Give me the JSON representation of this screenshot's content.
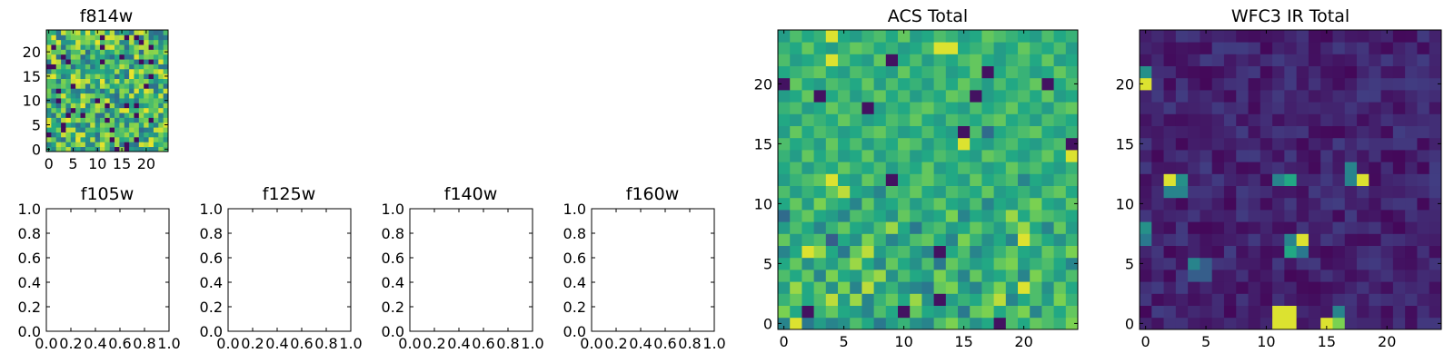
{
  "chart_data": [
    {
      "type": "heatmap",
      "id": "p814",
      "title": "f814w",
      "xlim": [
        -0.5,
        24.5
      ],
      "ylim": [
        -0.5,
        24.5
      ],
      "xticks": [
        0,
        5,
        10,
        15,
        20
      ],
      "yticks": [
        0,
        5,
        10,
        15,
        20
      ],
      "colormap": "viridis",
      "rows": 25,
      "cols": 25,
      "values": []
    },
    {
      "type": "heatmap",
      "id": "p105",
      "title": "f105w",
      "xlim": [
        0.0,
        1.0
      ],
      "ylim": [
        0.0,
        1.0
      ],
      "xticks": [
        "0.0",
        "0.2",
        "0.4",
        "0.6",
        "0.8",
        "1.0"
      ],
      "yticks": [
        "0.0",
        "0.2",
        "0.4",
        "0.6",
        "0.8",
        "1.0"
      ],
      "values": []
    },
    {
      "type": "heatmap",
      "id": "p125",
      "title": "f125w",
      "xlim": [
        0.0,
        1.0
      ],
      "ylim": [
        0.0,
        1.0
      ],
      "xticks": [
        "0.0",
        "0.2",
        "0.4",
        "0.6",
        "0.8",
        "1.0"
      ],
      "yticks": [
        "0.0",
        "0.2",
        "0.4",
        "0.6",
        "0.8",
        "1.0"
      ],
      "values": []
    },
    {
      "type": "heatmap",
      "id": "p140",
      "title": "f140w",
      "xlim": [
        0.0,
        1.0
      ],
      "ylim": [
        0.0,
        1.0
      ],
      "xticks": [
        "0.0",
        "0.2",
        "0.4",
        "0.6",
        "0.8",
        "1.0"
      ],
      "yticks": [
        "0.0",
        "0.2",
        "0.4",
        "0.6",
        "0.8",
        "1.0"
      ],
      "values": []
    },
    {
      "type": "heatmap",
      "id": "p160",
      "title": "f160w",
      "xlim": [
        0.0,
        1.0
      ],
      "ylim": [
        0.0,
        1.0
      ],
      "xticks": [
        "0.0",
        "0.2",
        "0.4",
        "0.6",
        "0.8",
        "1.0"
      ],
      "yticks": [
        "0.0",
        "0.2",
        "0.4",
        "0.6",
        "0.8",
        "1.0"
      ],
      "values": []
    },
    {
      "type": "heatmap",
      "id": "pacs",
      "title": "ACS Total",
      "xlim": [
        -0.5,
        24.5
      ],
      "ylim": [
        -0.5,
        24.5
      ],
      "xticks": [
        0,
        5,
        10,
        15,
        20
      ],
      "yticks": [
        0,
        5,
        10,
        15,
        20
      ],
      "colormap": "viridis",
      "rows": 25,
      "cols": 25,
      "values": [
        [
          0.45,
          0.95,
          0.4,
          0.55,
          0.45,
          0.5,
          0.7,
          0.6,
          0.4,
          0.55,
          0.65,
          0.5,
          0.45,
          0.7,
          0.8,
          0.65,
          0.5,
          0.6,
          0.05,
          0.7,
          0.6,
          0.75,
          0.7,
          0.65,
          0.8
        ],
        [
          0.8,
          0.6,
          0.05,
          0.65,
          0.75,
          0.6,
          0.55,
          0.45,
          0.7,
          0.6,
          0.05,
          0.75,
          0.6,
          0.55,
          0.65,
          0.4,
          0.75,
          0.8,
          0.6,
          0.7,
          0.8,
          0.45,
          0.7,
          0.6,
          0.75
        ],
        [
          0.65,
          0.75,
          0.6,
          0.7,
          0.9,
          0.55,
          0.85,
          0.45,
          0.65,
          0.75,
          0.6,
          0.85,
          0.5,
          0.05,
          0.55,
          0.65,
          0.6,
          0.75,
          0.9,
          0.45,
          0.6,
          0.7,
          0.55,
          0.8,
          0.65
        ],
        [
          0.55,
          0.85,
          0.6,
          0.75,
          0.5,
          0.8,
          0.45,
          0.9,
          0.55,
          0.65,
          0.5,
          0.45,
          0.4,
          0.75,
          0.8,
          0.55,
          0.45,
          0.65,
          0.8,
          0.55,
          0.95,
          0.7,
          0.5,
          0.75,
          0.6
        ],
        [
          0.7,
          0.6,
          0.75,
          0.45,
          0.8,
          0.6,
          0.55,
          0.75,
          0.85,
          0.5,
          0.7,
          0.6,
          0.55,
          0.8,
          0.65,
          0.45,
          0.75,
          0.55,
          0.6,
          0.7,
          0.45,
          0.8,
          0.65,
          0.55,
          0.7
        ],
        [
          0.6,
          0.75,
          0.5,
          0.65,
          0.55,
          0.7,
          0.85,
          0.6,
          0.45,
          0.75,
          0.6,
          0.5,
          0.7,
          0.4,
          0.75,
          0.65,
          0.55,
          0.6,
          0.75,
          0.8,
          0.55,
          0.65,
          0.7,
          0.6,
          0.45
        ],
        [
          0.45,
          0.6,
          0.95,
          0.85,
          0.6,
          0.4,
          0.75,
          0.9,
          0.55,
          0.65,
          0.7,
          0.55,
          0.45,
          0.05,
          0.6,
          0.7,
          0.45,
          0.55,
          0.65,
          0.75,
          0.6,
          0.55,
          0.75,
          0.65,
          0.8
        ],
        [
          0.75,
          0.55,
          0.65,
          0.7,
          0.3,
          0.6,
          0.5,
          0.8,
          0.65,
          0.45,
          0.55,
          0.7,
          0.75,
          0.6,
          0.45,
          0.8,
          0.65,
          0.5,
          0.6,
          0.45,
          0.95,
          0.7,
          0.6,
          0.5,
          0.65
        ],
        [
          0.55,
          0.7,
          0.6,
          0.45,
          0.65,
          0.75,
          0.6,
          0.55,
          0.7,
          0.85,
          0.6,
          0.4,
          0.65,
          0.7,
          0.55,
          0.6,
          0.75,
          0.65,
          0.55,
          0.7,
          0.85,
          0.6,
          0.45,
          0.75,
          0.55
        ],
        [
          0.35,
          0.65,
          0.75,
          0.6,
          0.55,
          0.45,
          0.7,
          0.65,
          0.6,
          0.5,
          0.75,
          0.65,
          0.55,
          0.6,
          0.8,
          0.45,
          0.6,
          0.55,
          0.65,
          0.85,
          0.6,
          0.75,
          0.7,
          0.65,
          0.6
        ],
        [
          0.6,
          0.75,
          0.55,
          0.8,
          0.65,
          0.6,
          0.45,
          0.75,
          0.55,
          0.6,
          0.7,
          0.55,
          0.65,
          0.75,
          0.6,
          0.55,
          0.7,
          0.45,
          0.6,
          0.55,
          0.7,
          0.8,
          0.6,
          0.55,
          0.75
        ],
        [
          0.7,
          0.55,
          0.65,
          0.6,
          0.75,
          0.9,
          0.6,
          0.55,
          0.45,
          0.7,
          0.65,
          0.75,
          0.6,
          0.55,
          0.7,
          0.65,
          0.6,
          0.75,
          0.55,
          0.6,
          0.65,
          0.55,
          0.7,
          0.75,
          0.6
        ],
        [
          0.55,
          0.65,
          0.7,
          0.75,
          0.95,
          0.6,
          0.55,
          0.75,
          0.65,
          0.05,
          0.6,
          0.7,
          0.75,
          0.65,
          0.6,
          0.55,
          0.75,
          0.6,
          0.65,
          0.7,
          0.45,
          0.6,
          0.55,
          0.65,
          0.7
        ],
        [
          0.6,
          0.7,
          0.55,
          0.65,
          0.6,
          0.75,
          0.65,
          0.6,
          0.7,
          0.55,
          0.65,
          0.6,
          0.75,
          0.55,
          0.6,
          0.7,
          0.65,
          0.55,
          0.6,
          0.75,
          0.65,
          0.7,
          0.6,
          0.55,
          0.65
        ],
        [
          0.65,
          0.55,
          0.75,
          0.6,
          0.7,
          0.55,
          0.6,
          0.75,
          0.55,
          0.65,
          0.7,
          0.55,
          0.6,
          0.7,
          0.65,
          0.6,
          0.55,
          0.75,
          0.7,
          0.6,
          0.55,
          0.65,
          0.75,
          0.6,
          0.95
        ],
        [
          0.7,
          0.6,
          0.65,
          0.55,
          0.75,
          0.6,
          0.7,
          0.55,
          0.65,
          0.6,
          0.75,
          0.7,
          0.55,
          0.65,
          0.6,
          0.95,
          0.6,
          0.55,
          0.65,
          0.7,
          0.6,
          0.55,
          0.65,
          0.7,
          0.05
        ],
        [
          0.55,
          0.75,
          0.6,
          0.7,
          0.65,
          0.55,
          0.6,
          0.7,
          0.75,
          0.65,
          0.55,
          0.6,
          0.7,
          0.6,
          0.55,
          0.05,
          0.7,
          0.35,
          0.6,
          0.65,
          0.7,
          0.75,
          0.6,
          0.55,
          0.65
        ],
        [
          0.6,
          0.55,
          0.7,
          0.65,
          0.6,
          0.75,
          0.65,
          0.55,
          0.6,
          0.7,
          0.65,
          0.75,
          0.6,
          0.55,
          0.7,
          0.65,
          0.6,
          0.7,
          0.75,
          0.6,
          0.65,
          0.55,
          0.7,
          0.65,
          0.6
        ],
        [
          0.65,
          0.7,
          0.55,
          0.6,
          0.75,
          0.65,
          0.7,
          0.05,
          0.55,
          0.65,
          0.6,
          0.7,
          0.75,
          0.65,
          0.6,
          0.55,
          0.7,
          0.6,
          0.65,
          0.75,
          0.6,
          0.65,
          0.55,
          0.7,
          0.75
        ],
        [
          0.55,
          0.6,
          0.75,
          0.05,
          0.6,
          0.7,
          0.55,
          0.65,
          0.75,
          0.6,
          0.7,
          0.55,
          0.65,
          0.6,
          0.75,
          0.7,
          0.05,
          0.55,
          0.6,
          0.65,
          0.7,
          0.6,
          0.75,
          0.55,
          0.6
        ],
        [
          0.05,
          0.75,
          0.6,
          0.55,
          0.7,
          0.65,
          0.6,
          0.75,
          0.55,
          0.7,
          0.6,
          0.65,
          0.55,
          0.7,
          0.6,
          0.75,
          0.65,
          0.55,
          0.7,
          0.6,
          0.65,
          0.75,
          0.05,
          0.6,
          0.7
        ],
        [
          0.6,
          0.65,
          0.7,
          0.75,
          0.6,
          0.55,
          0.7,
          0.65,
          0.6,
          0.55,
          0.75,
          0.6,
          0.65,
          0.7,
          0.55,
          0.6,
          0.75,
          0.05,
          0.6,
          0.7,
          0.65,
          0.55,
          0.6,
          0.75,
          0.65
        ],
        [
          0.7,
          0.55,
          0.6,
          0.65,
          0.95,
          0.7,
          0.6,
          0.55,
          0.75,
          0.05,
          0.6,
          0.7,
          0.55,
          0.65,
          0.6,
          0.7,
          0.75,
          0.6,
          0.55,
          0.65,
          0.7,
          0.6,
          0.75,
          0.55,
          0.6
        ],
        [
          0.65,
          0.6,
          0.75,
          0.6,
          0.55,
          0.65,
          0.75,
          0.7,
          0.6,
          0.65,
          0.55,
          0.6,
          0.7,
          0.95,
          0.95,
          0.6,
          0.65,
          0.7,
          0.55,
          0.6,
          0.75,
          0.65,
          0.6,
          0.7,
          0.55
        ],
        [
          0.55,
          0.7,
          0.6,
          0.65,
          0.95,
          0.6,
          0.55,
          0.65,
          0.7,
          0.6,
          0.75,
          0.55,
          0.6,
          0.7,
          0.65,
          0.55,
          0.6,
          0.75,
          0.7,
          0.65,
          0.6,
          0.55,
          0.7,
          0.6,
          0.65
        ]
      ]
    },
    {
      "type": "heatmap",
      "id": "pir",
      "title": "WFC3 IR Total",
      "xlim": [
        -0.5,
        24.5
      ],
      "ylim": [
        -0.5,
        24.5
      ],
      "xticks": [
        0,
        5,
        10,
        15,
        20
      ],
      "yticks": [
        0,
        5,
        10,
        15,
        20
      ],
      "colormap": "viridis",
      "rows": 25,
      "cols": 25,
      "hotspots": [
        {
          "x": 11,
          "y": 1,
          "v": 0.95
        },
        {
          "x": 12,
          "y": 1,
          "v": 0.95
        },
        {
          "x": 11,
          "y": 0,
          "v": 0.95
        },
        {
          "x": 12,
          "y": 0,
          "v": 0.95
        },
        {
          "x": 15,
          "y": 0,
          "v": 0.95
        },
        {
          "x": 16,
          "y": 0,
          "v": 0.8
        },
        {
          "x": 16,
          "y": 1,
          "v": 0.45
        },
        {
          "x": 12,
          "y": 7,
          "v": 0.45
        },
        {
          "x": 13,
          "y": 7,
          "v": 0.95
        },
        {
          "x": 12,
          "y": 6,
          "v": 0.6
        },
        {
          "x": 13,
          "y": 6,
          "v": 0.4
        },
        {
          "x": 2,
          "y": 12,
          "v": 0.95
        },
        {
          "x": 3,
          "y": 12,
          "v": 0.5
        },
        {
          "x": 2,
          "y": 11,
          "v": 0.45
        },
        {
          "x": 3,
          "y": 11,
          "v": 0.45
        },
        {
          "x": 11,
          "y": 12,
          "v": 0.45
        },
        {
          "x": 12,
          "y": 12,
          "v": 0.6
        },
        {
          "x": 17,
          "y": 13,
          "v": 0.45
        },
        {
          "x": 17,
          "y": 12,
          "v": 0.45
        },
        {
          "x": 18,
          "y": 12,
          "v": 0.95
        },
        {
          "x": 0,
          "y": 20,
          "v": 0.95
        },
        {
          "x": 0,
          "y": 21,
          "v": 0.5
        },
        {
          "x": 0,
          "y": 8,
          "v": 0.5
        },
        {
          "x": 0,
          "y": 7,
          "v": 0.4
        },
        {
          "x": 4,
          "y": 5,
          "v": 0.45
        },
        {
          "x": 5,
          "y": 5,
          "v": 0.3
        },
        {
          "x": 4,
          "y": 4,
          "v": 0.3
        },
        {
          "x": 5,
          "y": 4,
          "v": 0.3
        }
      ],
      "values": []
    }
  ]
}
